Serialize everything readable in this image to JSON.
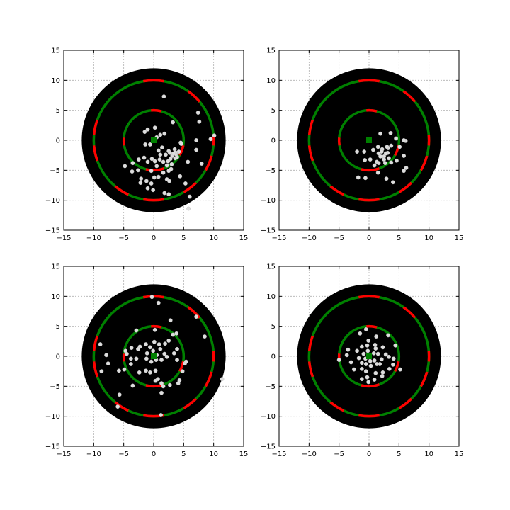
{
  "chart_data": {
    "type": "scatter",
    "layout": "2x2 grid",
    "xlim": [
      -15,
      15
    ],
    "ylim": [
      -15,
      15
    ],
    "xticks": [
      -15,
      -10,
      -5,
      0,
      5,
      10,
      15
    ],
    "yticks": [
      -15,
      -10,
      -5,
      0,
      5,
      10,
      15
    ],
    "xtick_labels": [
      "−15",
      "−10",
      "−5",
      "0",
      "5",
      "10",
      "15"
    ],
    "ytick_labels": [
      "−15",
      "−10",
      "−5",
      "0",
      "5",
      "10",
      "15"
    ],
    "grid": true,
    "colors": {
      "disc": "#000000",
      "ring_primary": "#008000",
      "ring_secondary": "#ff0000",
      "points": "#dddddd",
      "center_marker": "#008000",
      "grid": "#b0b0b0"
    },
    "disc_radius": 12,
    "ring_radii": [
      5,
      10
    ],
    "rings": [
      {
        "radius": 5,
        "red_segments": [
          [
            75,
            95
          ],
          [
            175,
            190
          ],
          [
            255,
            290
          ],
          [
            330,
            350
          ]
        ]
      },
      {
        "radius": 10,
        "red_segments": [
          [
            40,
            55
          ],
          [
            80,
            100
          ],
          [
            160,
            175
          ],
          [
            185,
            200
          ],
          [
            230,
            245
          ],
          [
            260,
            280
          ],
          [
            300,
            315
          ],
          [
            330,
            345
          ],
          [
            355,
            365
          ]
        ]
      }
    ],
    "center": [
      0,
      0
    ],
    "panels": [
      {
        "points": [
          [
            -1.5,
            1.4
          ],
          [
            -1,
            1.8
          ],
          [
            0.2,
            2.1
          ],
          [
            1.1,
            0.9
          ],
          [
            0.5,
            0.5
          ],
          [
            1.8,
            1.1
          ],
          [
            1.7,
            7.3
          ],
          [
            3.2,
            3
          ],
          [
            7.4,
            4.6
          ],
          [
            7.6,
            3.1
          ],
          [
            9.5,
            0.2
          ],
          [
            10.1,
            0.8
          ],
          [
            7.1,
            0
          ],
          [
            7.1,
            -1.6
          ],
          [
            4.5,
            -0.4
          ],
          [
            3.5,
            -1.5
          ],
          [
            2.5,
            -1.8
          ],
          [
            2,
            -2.4
          ],
          [
            3.1,
            -2.6
          ],
          [
            2.8,
            -3.1
          ],
          [
            3.6,
            -3
          ],
          [
            2.4,
            -3.5
          ],
          [
            3,
            -4
          ],
          [
            1.6,
            -3.6
          ],
          [
            1,
            -3.2
          ],
          [
            0.2,
            -3.5
          ],
          [
            -0.3,
            -3.1
          ],
          [
            -1,
            -3.6
          ],
          [
            -1.6,
            -2.9
          ],
          [
            -2.5,
            -3.2
          ],
          [
            -3.5,
            -3.8
          ],
          [
            -4.8,
            -4.3
          ],
          [
            -3.6,
            -5.2
          ],
          [
            -2.6,
            -5
          ],
          [
            -2.1,
            -6.4
          ],
          [
            -1.2,
            -6.8
          ],
          [
            -0.4,
            -7.2
          ],
          [
            0.1,
            -6.2
          ],
          [
            0.8,
            -6.1
          ],
          [
            1.6,
            -5.4
          ],
          [
            2.5,
            -5.1
          ],
          [
            2.2,
            -6.5
          ],
          [
            2.6,
            -6.8
          ],
          [
            4.4,
            -6
          ],
          [
            5.3,
            -7.2
          ],
          [
            6,
            -9.4
          ],
          [
            2.5,
            -9
          ],
          [
            1.8,
            -8.8
          ],
          [
            -0.1,
            -8.3
          ],
          [
            -1,
            -8
          ],
          [
            -2.2,
            -7.1
          ],
          [
            -0.6,
            -0.7
          ],
          [
            -1.4,
            -0.7
          ],
          [
            0.8,
            -1.7
          ],
          [
            1.4,
            -1.2
          ],
          [
            1.1,
            -2.4
          ],
          [
            3.7,
            -2.3
          ],
          [
            4.2,
            -1.9
          ],
          [
            3.6,
            -2
          ],
          [
            4.6,
            -0.6
          ],
          [
            5.7,
            -3.6
          ],
          [
            5.8,
            -11.4
          ],
          [
            8,
            -3.9
          ],
          [
            2.9,
            -4.8
          ],
          [
            2.2,
            -4.2
          ],
          [
            0.5,
            -4.3
          ],
          [
            -0.4,
            -5.1
          ],
          [
            3.3,
            -2.2
          ],
          [
            3.9,
            -2.8
          ],
          [
            2.7,
            -2.1
          ]
        ]
      },
      {
        "points": [
          [
            1.9,
            1.1
          ],
          [
            3.6,
            1.2
          ],
          [
            4.5,
            0.3
          ],
          [
            6.1,
            -0.1
          ],
          [
            5.8,
            0
          ],
          [
            5.1,
            -1.1
          ],
          [
            4.6,
            -3.4
          ],
          [
            5.8,
            -2.6
          ],
          [
            6.2,
            -4.6
          ],
          [
            5.8,
            -5.1
          ],
          [
            3.7,
            -3.7
          ],
          [
            4,
            -7
          ],
          [
            2.9,
            -6.4
          ],
          [
            1.5,
            -5.4
          ],
          [
            -0.6,
            -6.3
          ],
          [
            -1.8,
            -6.2
          ],
          [
            0.9,
            -4.2
          ],
          [
            1.3,
            -3.6
          ],
          [
            0.2,
            -3.2
          ],
          [
            -0.7,
            -3.3
          ],
          [
            -2,
            -1.9
          ],
          [
            -0.8,
            -1.9
          ],
          [
            0.7,
            -1.6
          ],
          [
            1.5,
            -1.1
          ],
          [
            2.2,
            -1.5
          ],
          [
            3.2,
            -1.3
          ],
          [
            3.7,
            -0.9
          ],
          [
            3.1,
            -2.1
          ],
          [
            2.5,
            -2.7
          ],
          [
            2.8,
            -2.2
          ],
          [
            1.9,
            -2.7
          ],
          [
            1.6,
            -2.2
          ],
          [
            2.5,
            -3.2
          ],
          [
            3.3,
            -3
          ],
          [
            2.7,
            -3.8
          ],
          [
            1.6,
            -3.8
          ],
          [
            3,
            -1.1
          ],
          [
            2.1,
            -1.9
          ]
        ]
      },
      {
        "points": [
          [
            -0.3,
            9.9
          ],
          [
            0.8,
            8.9
          ],
          [
            2.8,
            6
          ],
          [
            7.1,
            6.6
          ],
          [
            -2.9,
            4.3
          ],
          [
            0.2,
            4.4
          ],
          [
            3.2,
            3.6
          ],
          [
            3.8,
            3.8
          ],
          [
            2.5,
            2.6
          ],
          [
            0.1,
            2.4
          ],
          [
            0.9,
            2
          ],
          [
            1.9,
            2.1
          ],
          [
            -1.3,
            2
          ],
          [
            -2.3,
            1.6
          ],
          [
            -3.7,
            1.4
          ],
          [
            -4.7,
            0.9
          ],
          [
            -4.5,
            0.4
          ],
          [
            -3.8,
            -0.4
          ],
          [
            -3.8,
            -1.3
          ],
          [
            -4.9,
            -2.2
          ],
          [
            -5.8,
            -2.4
          ],
          [
            -7.9,
            0.2
          ],
          [
            -7.6,
            -1.2
          ],
          [
            -8.9,
            2
          ],
          [
            -8.7,
            -2.5
          ],
          [
            -3.5,
            -4.9
          ],
          [
            -5.7,
            -6.4
          ],
          [
            -6,
            -8.4
          ],
          [
            -2.4,
            -2.7
          ],
          [
            -1.3,
            -2.4
          ],
          [
            -0.6,
            -2.7
          ],
          [
            0.3,
            -2.4
          ],
          [
            0.7,
            -3.8
          ],
          [
            0.3,
            -4.1
          ],
          [
            1.3,
            -4.5
          ],
          [
            1.6,
            -5
          ],
          [
            1.3,
            -6.1
          ],
          [
            2.7,
            -4.8
          ],
          [
            4.1,
            -4.5
          ],
          [
            4.8,
            -2.5
          ],
          [
            5.2,
            -1.2
          ],
          [
            5.4,
            -0.9
          ],
          [
            3.9,
            -0.6
          ],
          [
            3.4,
            0.5
          ],
          [
            3.9,
            1.2
          ],
          [
            1.8,
            0.4
          ],
          [
            2.2,
            -0.1
          ],
          [
            1.3,
            -0.6
          ],
          [
            0.4,
            -0.6
          ],
          [
            -0.4,
            -0.9
          ],
          [
            -1.2,
            -0.4
          ],
          [
            -1.1,
            0.5
          ],
          [
            -0.1,
            0.9
          ],
          [
            0.5,
            0.2
          ],
          [
            1.1,
            1.2
          ],
          [
            -0.6,
            1.5
          ],
          [
            -2.9,
            -0.4
          ],
          [
            -2.6,
            1.2
          ],
          [
            8.5,
            3.3
          ],
          [
            11.4,
            -3.8
          ],
          [
            4.3,
            -4
          ],
          [
            1.2,
            -9.8
          ]
        ]
      },
      {
        "points": [
          [
            -0.1,
            2.6
          ],
          [
            -1.5,
            3.8
          ],
          [
            -0.5,
            4.5
          ],
          [
            1.2,
            3.3
          ],
          [
            3.2,
            3.5
          ],
          [
            4.4,
            1.8
          ],
          [
            2.3,
            1.5
          ],
          [
            1,
            1.9
          ],
          [
            1.1,
            1.3
          ],
          [
            -0.3,
            1.8
          ],
          [
            -1.2,
            1.6
          ],
          [
            -2,
            0.9
          ],
          [
            -3.5,
            1.1
          ],
          [
            -3.7,
            0.2
          ],
          [
            -5,
            -0.6
          ],
          [
            -3,
            -1
          ],
          [
            -2.5,
            -2.2
          ],
          [
            -1.2,
            -2.1
          ],
          [
            -0.5,
            -2.5
          ],
          [
            -0.3,
            -3.5
          ],
          [
            -1.2,
            -3.8
          ],
          [
            -0.1,
            -4.3
          ],
          [
            0.9,
            -3.9
          ],
          [
            1.1,
            -2.8
          ],
          [
            2.2,
            -3.3
          ],
          [
            2.3,
            -2.7
          ],
          [
            3.4,
            -2.1
          ],
          [
            4,
            -1.4
          ],
          [
            5.2,
            -2.2
          ],
          [
            4.1,
            -0.4
          ],
          [
            3.3,
            -0.1
          ],
          [
            2.8,
            0.3
          ],
          [
            2.1,
            -0.5
          ],
          [
            1.8,
            -1.3
          ],
          [
            1.3,
            -1.3
          ],
          [
            0.9,
            -0.7
          ],
          [
            0.1,
            -0.2
          ],
          [
            -0.6,
            -0.4
          ],
          [
            -0.9,
            0.4
          ],
          [
            -0.2,
            0.9
          ],
          [
            0.8,
            0.5
          ],
          [
            1.5,
            0.4
          ],
          [
            -1.7,
            -0.3
          ],
          [
            -1.2,
            -1.1
          ],
          [
            -0.5,
            -1.3
          ],
          [
            0.3,
            -1.6
          ],
          [
            0.2,
            -0.8
          ]
        ]
      }
    ]
  }
}
